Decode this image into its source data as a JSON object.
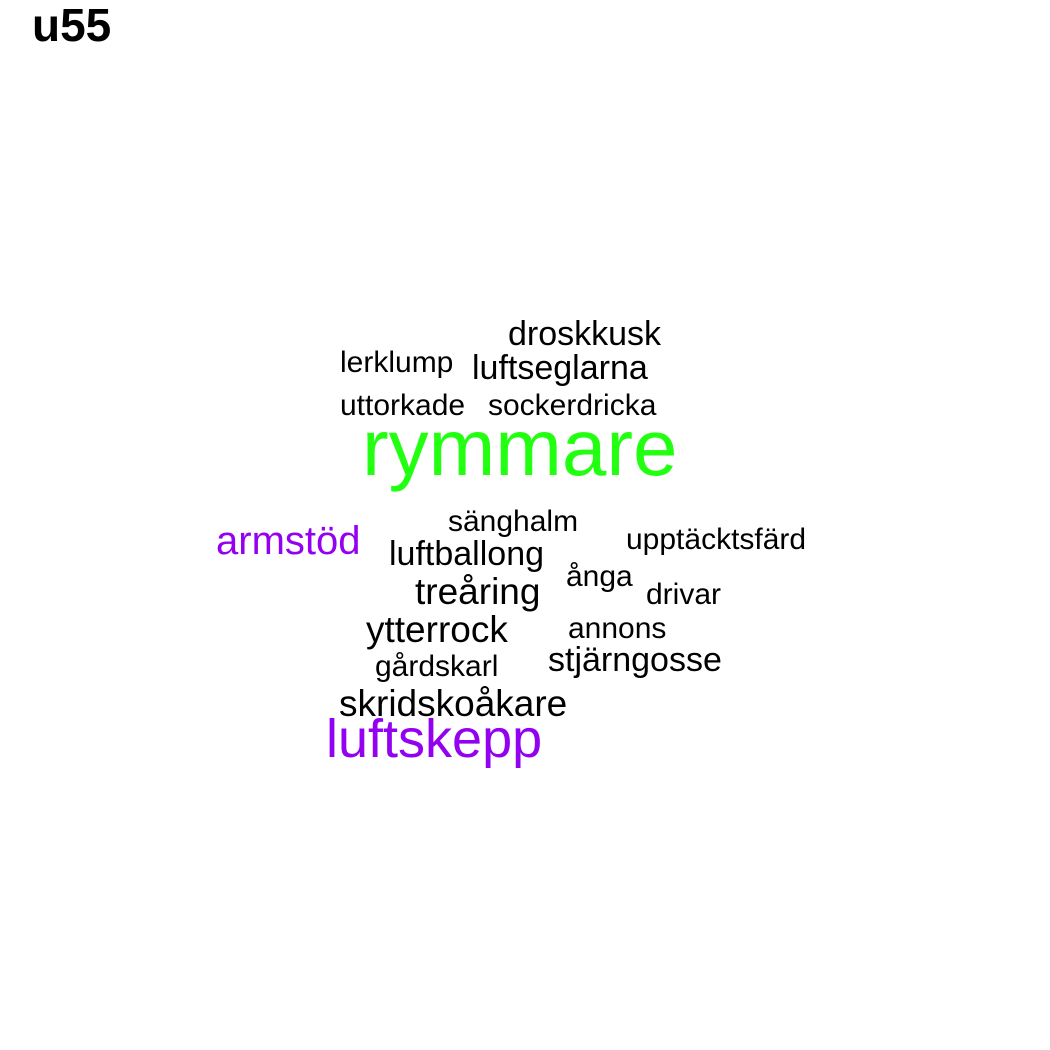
{
  "title": "u55",
  "colors": {
    "green": "#22ff11",
    "purple": "#9400f0",
    "black": "#000000"
  },
  "words": [
    {
      "id": "rymmare",
      "text": "rymmare",
      "color": "#22ff11"
    },
    {
      "id": "luftskepp",
      "text": "luftskepp",
      "color": "#9400f0"
    },
    {
      "id": "armstod",
      "text": "armstöd",
      "color": "#9400f0"
    },
    {
      "id": "droskkusk",
      "text": "droskkusk",
      "color": "#000000"
    },
    {
      "id": "lerklump",
      "text": "lerklump",
      "color": "#000000"
    },
    {
      "id": "luftseglarna",
      "text": "luftseglarna",
      "color": "#000000"
    },
    {
      "id": "uttorkade",
      "text": "uttorkade",
      "color": "#000000"
    },
    {
      "id": "sockerdricka",
      "text": "sockerdricka",
      "color": "#000000"
    },
    {
      "id": "sanghalm",
      "text": "sänghalm",
      "color": "#000000"
    },
    {
      "id": "upptacktsfard",
      "text": "upptäcktsfärd",
      "color": "#000000"
    },
    {
      "id": "luftballong",
      "text": "luftballong",
      "color": "#000000"
    },
    {
      "id": "anga",
      "text": "ånga",
      "color": "#000000"
    },
    {
      "id": "drivar",
      "text": "drivar",
      "color": "#000000"
    },
    {
      "id": "trearing",
      "text": "treåring",
      "color": "#000000"
    },
    {
      "id": "ytterrock",
      "text": "ytterrock",
      "color": "#000000"
    },
    {
      "id": "annons",
      "text": "annons",
      "color": "#000000"
    },
    {
      "id": "stjarngosse",
      "text": "stjärngosse",
      "color": "#000000"
    },
    {
      "id": "gardskarl",
      "text": "gårdskarl",
      "color": "#000000"
    },
    {
      "id": "skridskoakare",
      "text": "skridskoåkare",
      "color": "#000000"
    }
  ]
}
